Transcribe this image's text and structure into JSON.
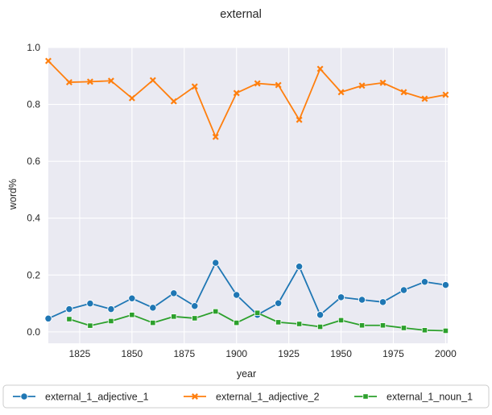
{
  "chart_data": {
    "type": "line",
    "title": "external",
    "xlabel": "year",
    "ylabel": "word%",
    "xlim": [
      1810,
      2001
    ],
    "ylim": [
      -0.04,
      1.0
    ],
    "xticks": [
      1825,
      1850,
      1875,
      1900,
      1925,
      1950,
      1975,
      2000
    ],
    "yticks": [
      "0.0",
      "0.2",
      "0.4",
      "0.6",
      "0.8",
      "1.0"
    ],
    "grid": true,
    "legend_position": "bottom",
    "background": "#eaeaf2",
    "series": [
      {
        "name": "external_1_adjective_1",
        "color": "#1f77b4",
        "marker": "circle",
        "x": [
          1810,
          1820,
          1830,
          1840,
          1850,
          1860,
          1870,
          1880,
          1890,
          1900,
          1910,
          1920,
          1930,
          1940,
          1950,
          1960,
          1970,
          1980,
          1990,
          2000
        ],
        "values": [
          0.047,
          0.08,
          0.1,
          0.08,
          0.118,
          0.085,
          0.136,
          0.091,
          0.243,
          0.13,
          0.06,
          0.101,
          0.23,
          0.06,
          0.122,
          0.113,
          0.105,
          0.147,
          0.176,
          0.165
        ]
      },
      {
        "name": "external_1_adjective_2",
        "color": "#ff7f0e",
        "marker": "x",
        "x": [
          1810,
          1820,
          1830,
          1840,
          1850,
          1860,
          1870,
          1880,
          1890,
          1900,
          1910,
          1920,
          1930,
          1940,
          1950,
          1960,
          1970,
          1980,
          1990,
          2000
        ],
        "values": [
          0.953,
          0.878,
          0.88,
          0.883,
          0.822,
          0.885,
          0.811,
          0.863,
          0.686,
          0.84,
          0.874,
          0.868,
          0.746,
          0.925,
          0.843,
          0.866,
          0.876,
          0.843,
          0.82,
          0.834
        ]
      },
      {
        "name": "external_1_noun_1",
        "color": "#2ca02c",
        "marker": "square",
        "x": [
          1820,
          1830,
          1840,
          1850,
          1860,
          1870,
          1880,
          1890,
          1900,
          1910,
          1920,
          1930,
          1940,
          1950,
          1960,
          1970,
          1980,
          1990,
          2000
        ],
        "values": [
          0.045,
          0.022,
          0.038,
          0.06,
          0.032,
          0.054,
          0.048,
          0.072,
          0.032,
          0.067,
          0.034,
          0.028,
          0.018,
          0.041,
          0.023,
          0.023,
          0.014,
          0.006,
          0.004
        ]
      }
    ]
  }
}
